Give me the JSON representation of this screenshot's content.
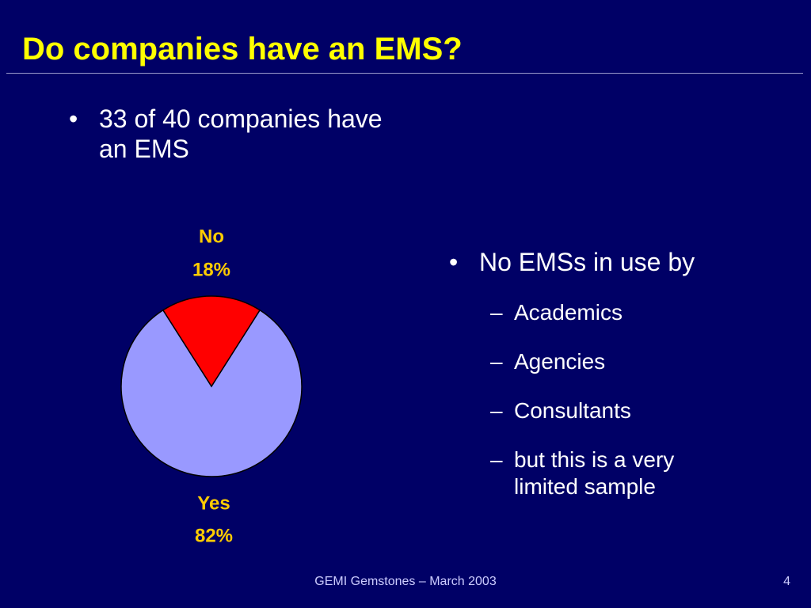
{
  "title": "Do companies have an EMS?",
  "left_bullets": [
    "33 of 40 companies have an EMS"
  ],
  "right_bullet": "No EMSs in use by",
  "right_subitems": [
    "Academics",
    "Agencies",
    "Consultants",
    "but this is a very limited sample"
  ],
  "footer": "GEMI Gemstones – March 2003",
  "page_number": "4",
  "chart_data": {
    "type": "pie",
    "categories": [
      "No",
      "Yes"
    ],
    "values": [
      18,
      82
    ],
    "value_labels": [
      "18%",
      "82%"
    ],
    "colors": [
      "#ff0000",
      "#9999ff"
    ]
  }
}
